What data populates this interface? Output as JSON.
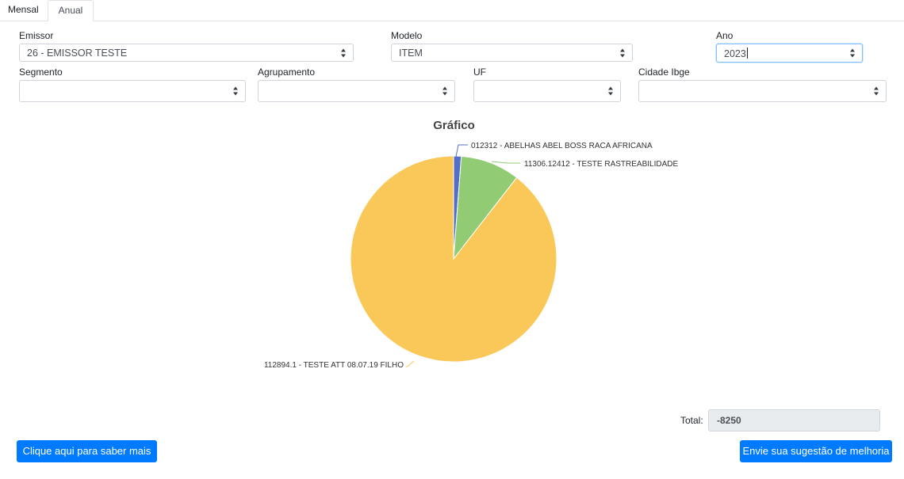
{
  "tabs": [
    {
      "label": "Mensal"
    },
    {
      "label": "Anual"
    }
  ],
  "filters": {
    "emissor": {
      "label": "Emissor",
      "value": "26 - EMISSOR TESTE"
    },
    "modelo": {
      "label": "Modelo",
      "value": "ITEM"
    },
    "ano": {
      "label": "Ano",
      "value": "2023"
    },
    "segmento": {
      "label": "Segmento",
      "value": ""
    },
    "agrupamento": {
      "label": "Agrupamento",
      "value": ""
    },
    "uf": {
      "label": "UF",
      "value": ""
    },
    "cidade": {
      "label": "Cidade Ibge",
      "value": ""
    }
  },
  "chart_data": {
    "type": "pie",
    "title": "Gráfico",
    "slices": [
      {
        "label": "012312 - ABELHAS ABEL BOSS RACA AFRICANA",
        "value": 1.2,
        "color": "#5470c6"
      },
      {
        "label": "11306.12412 - TESTE RASTREABILIDADE",
        "value": 9.3,
        "color": "#91cc75"
      },
      {
        "label": "112894.1 - TESTE ATT 08.07.19 FILHO",
        "value": 89.5,
        "color": "#fac858"
      }
    ]
  },
  "total": {
    "label": "Total:",
    "value": "-8250"
  },
  "buttons": {
    "saber_mais": "Clique aqui para saber mais",
    "sugestao": "Envie sua sugestão de melhoria"
  }
}
